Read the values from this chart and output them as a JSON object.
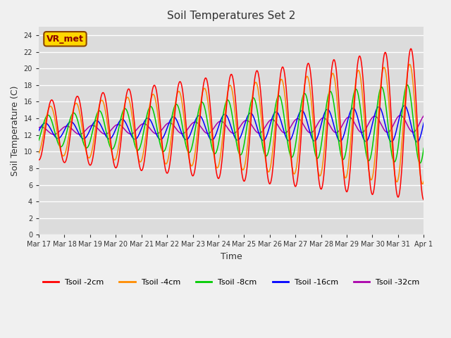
{
  "title": "Soil Temperatures Set 2",
  "xlabel": "Time",
  "ylabel": "Soil Temperature (C)",
  "ylim": [
    0,
    25
  ],
  "yticks": [
    0,
    2,
    4,
    6,
    8,
    10,
    12,
    14,
    16,
    18,
    20,
    22,
    24
  ],
  "annotation_text": "VR_met",
  "annotation_color": "#8B0000",
  "annotation_bg": "#FFD700",
  "bg_color": "#DCDCDC",
  "fig_color": "#F0F0F0",
  "line_colors": {
    "2cm": "#FF0000",
    "4cm": "#FF8C00",
    "8cm": "#00CC00",
    "16cm": "#0000FF",
    "32cm": "#AA00AA"
  },
  "legend_labels": [
    "Tsoil -2cm",
    "Tsoil -4cm",
    "Tsoil -8cm",
    "Tsoil -16cm",
    "Tsoil -32cm"
  ],
  "xtick_positions": [
    0,
    1,
    2,
    3,
    4,
    5,
    6,
    7,
    8,
    9,
    10,
    11,
    12,
    13,
    14,
    15
  ],
  "xtick_labels": [
    "Mar 17",
    "Mar 18",
    "Mar 19",
    "Mar 20",
    "Mar 21",
    "Mar 22",
    "Mar 23",
    "Mar 24",
    "Mar 25",
    "Mar 26",
    "Mar 27",
    "Mar 28",
    "Mar 29",
    "Mar 30",
    "Mar 31",
    "Apr 1"
  ]
}
